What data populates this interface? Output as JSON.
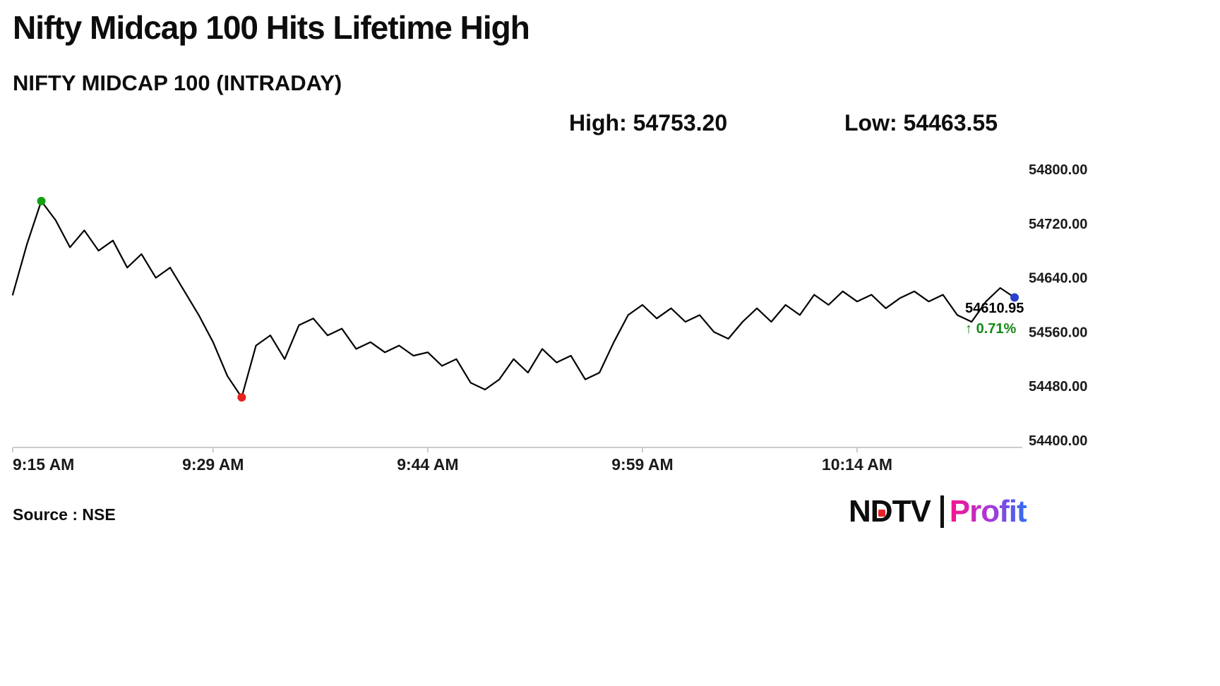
{
  "header": {
    "title": "Nifty Midcap 100 Hits Lifetime High",
    "subtitle": "NIFTY MIDCAP 100 (INTRADAY)",
    "high_label": "High: 54753.20",
    "low_label": "Low: 54463.55"
  },
  "chart_data": {
    "type": "line",
    "title": "NIFTY MIDCAP 100 (INTRADAY)",
    "x": [
      "9:15",
      "9:16",
      "9:17",
      "9:18",
      "9:19",
      "9:20",
      "9:21",
      "9:22",
      "9:23",
      "9:24",
      "9:25",
      "9:26",
      "9:27",
      "9:28",
      "9:29",
      "9:30",
      "9:31",
      "9:32",
      "9:33",
      "9:34",
      "9:35",
      "9:36",
      "9:37",
      "9:38",
      "9:39",
      "9:40",
      "9:41",
      "9:42",
      "9:43",
      "9:44",
      "9:45",
      "9:46",
      "9:47",
      "9:48",
      "9:49",
      "9:50",
      "9:51",
      "9:52",
      "9:53",
      "9:54",
      "9:55",
      "9:56",
      "9:57",
      "9:58",
      "9:59",
      "10:00",
      "10:01",
      "10:02",
      "10:03",
      "10:04",
      "10:05",
      "10:06",
      "10:07",
      "10:08",
      "10:09",
      "10:10",
      "10:11",
      "10:12",
      "10:13",
      "10:14",
      "10:15",
      "10:16",
      "10:17",
      "10:18",
      "10:19",
      "10:20",
      "10:21",
      "10:22",
      "10:23",
      "10:24",
      "10:25"
    ],
    "values": [
      54615,
      54690,
      54753.2,
      54725,
      54685,
      54710,
      54680,
      54695,
      54655,
      54675,
      54640,
      54655,
      54620,
      54585,
      54545,
      54495,
      54463.55,
      54540,
      54555,
      54520,
      54570,
      54580,
      54555,
      54565,
      54535,
      54545,
      54530,
      54540,
      54525,
      54530,
      54510,
      54520,
      54485,
      54475,
      54490,
      54520,
      54500,
      54535,
      54515,
      54525,
      54490,
      54500,
      54545,
      54585,
      54600,
      54580,
      54595,
      54575,
      54585,
      54560,
      54550,
      54575,
      54595,
      54575,
      54600,
      54585,
      54615,
      54600,
      54620,
      54605,
      54615,
      54595,
      54610,
      54620,
      54605,
      54615,
      54585,
      54575,
      54605,
      54625,
      54610.95
    ],
    "x_ticks": [
      0,
      14,
      29,
      44,
      59
    ],
    "x_tick_labels": [
      "9:15 AM",
      "9:29 AM",
      "9:44 AM",
      "9:59 AM",
      "10:14 AM"
    ],
    "y_ticks": [
      54800,
      54720,
      54640,
      54560,
      54480,
      54400
    ],
    "y_tick_labels": [
      "54800.00",
      "54720.00",
      "54640.00",
      "54560.00",
      "54480.00",
      "54400.00"
    ],
    "ylim": [
      54400,
      54800
    ],
    "xlabel": "",
    "ylabel": "",
    "grid": false,
    "legend": "none",
    "line_color": "#000000",
    "axis_color": "#cccccc",
    "high": 54753.2,
    "low": 54463.55,
    "last": 54610.95,
    "change_percent": 0.71,
    "marker_colors": {
      "high": "#13a113",
      "low": "#e8211d",
      "last": "#2b3fd0"
    }
  },
  "annotations": {
    "last_price": "54610.95",
    "arrow": "↑",
    "change_pct": "0.71%",
    "change_color": "#148a14"
  },
  "footer": {
    "source": "Source : NSE",
    "logo": {
      "n": "N",
      "d": "D",
      "tv": "TV",
      "separator": "|",
      "profit": "Profit"
    }
  }
}
